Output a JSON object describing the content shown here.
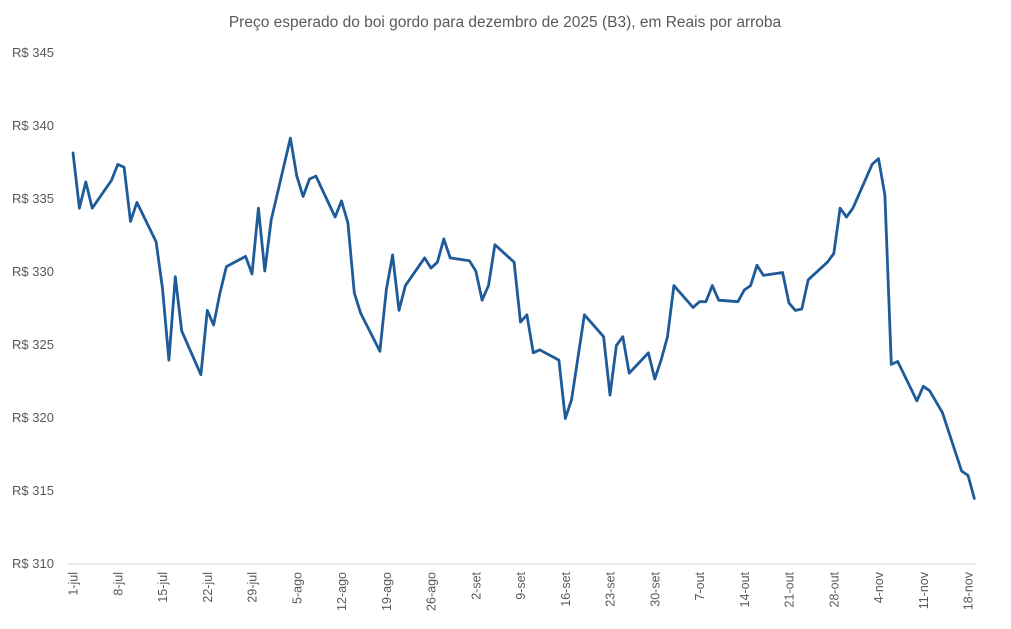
{
  "chart_data": {
    "type": "line",
    "title": "Preço esperado do boi gordo para dezembro de 2025 (B3), em Reais por arroba",
    "xlabel": "",
    "ylabel": "",
    "ylim": [
      310,
      345
    ],
    "y_ticks": [
      "R$ 310",
      "R$ 315",
      "R$ 320",
      "R$ 325",
      "R$ 330",
      "R$ 335",
      "R$ 340",
      "R$ 345"
    ],
    "y_tick_values": [
      310,
      315,
      320,
      325,
      330,
      335,
      340,
      345
    ],
    "x_ticks": [
      "1-jul",
      "8-jul",
      "15-jul",
      "22-jul",
      "29-jul",
      "5-ago",
      "12-ago",
      "19-ago",
      "26-ago",
      "2-set",
      "9-set",
      "16-set",
      "23-set",
      "30-set",
      "7-out",
      "14-out",
      "21-out",
      "28-out",
      "4-nov",
      "11-nov",
      "18-nov"
    ],
    "x_tick_dates": [
      "2025-07-01",
      "2025-07-08",
      "2025-07-15",
      "2025-07-22",
      "2025-07-29",
      "2025-08-05",
      "2025-08-12",
      "2025-08-19",
      "2025-08-26",
      "2025-09-02",
      "2025-09-09",
      "2025-09-16",
      "2025-09-23",
      "2025-09-30",
      "2025-10-07",
      "2025-10-14",
      "2025-10-21",
      "2025-10-28",
      "2025-11-04",
      "2025-11-11",
      "2025-11-18"
    ],
    "grid": false,
    "line_color": "#1f5b99",
    "series": [
      {
        "x": [
          "2025-07-01",
          "2025-07-02",
          "2025-07-03",
          "2025-07-04",
          "2025-07-07",
          "2025-07-08",
          "2025-07-09",
          "2025-07-10",
          "2025-07-11",
          "2025-07-14",
          "2025-07-15",
          "2025-07-16",
          "2025-07-17",
          "2025-07-18",
          "2025-07-21",
          "2025-07-22",
          "2025-07-23",
          "2025-07-24",
          "2025-07-25",
          "2025-07-28",
          "2025-07-29",
          "2025-07-30",
          "2025-07-31",
          "2025-08-01",
          "2025-08-04",
          "2025-08-05",
          "2025-08-06",
          "2025-08-07",
          "2025-08-08",
          "2025-08-11",
          "2025-08-12",
          "2025-08-13",
          "2025-08-14",
          "2025-08-15",
          "2025-08-18",
          "2025-08-19",
          "2025-08-20",
          "2025-08-21",
          "2025-08-22",
          "2025-08-25",
          "2025-08-26",
          "2025-08-27",
          "2025-08-28",
          "2025-08-29",
          "2025-09-01",
          "2025-09-02",
          "2025-09-03",
          "2025-09-04",
          "2025-09-05",
          "2025-09-08",
          "2025-09-09",
          "2025-09-10",
          "2025-09-11",
          "2025-09-12",
          "2025-09-15",
          "2025-09-16",
          "2025-09-17",
          "2025-09-19",
          "2025-09-22",
          "2025-09-23",
          "2025-09-24",
          "2025-09-25",
          "2025-09-26",
          "2025-09-29",
          "2025-09-30",
          "2025-10-01",
          "2025-10-02",
          "2025-10-03",
          "2025-10-06",
          "2025-10-07",
          "2025-10-08",
          "2025-10-09",
          "2025-10-10",
          "2025-10-13",
          "2025-10-14",
          "2025-10-15",
          "2025-10-16",
          "2025-10-17",
          "2025-10-20",
          "2025-10-21",
          "2025-10-22",
          "2025-10-23",
          "2025-10-24",
          "2025-10-27",
          "2025-10-28",
          "2025-10-29",
          "2025-10-30",
          "2025-10-31",
          "2025-11-03",
          "2025-11-04",
          "2025-11-05",
          "2025-11-06",
          "2025-11-07",
          "2025-11-10",
          "2025-11-11",
          "2025-11-12",
          "2025-11-14",
          "2025-11-17",
          "2025-11-18",
          "2025-11-19"
        ],
        "y": [
          338.1,
          334.3,
          336.1,
          334.3,
          336.2,
          337.3,
          337.1,
          333.4,
          334.7,
          332.0,
          328.8,
          323.9,
          329.6,
          325.9,
          322.9,
          327.3,
          326.3,
          328.5,
          330.3,
          331.0,
          329.8,
          334.3,
          330.0,
          333.5,
          339.1,
          336.5,
          335.1,
          336.3,
          336.5,
          333.7,
          334.8,
          333.3,
          328.5,
          327.1,
          324.5,
          328.7,
          331.1,
          327.3,
          329.0,
          330.9,
          330.2,
          330.6,
          332.2,
          330.9,
          330.7,
          330.0,
          328.0,
          329.0,
          331.8,
          330.6,
          326.5,
          327.0,
          324.4,
          324.6,
          323.9,
          319.9,
          321.2,
          327.0,
          325.5,
          321.5,
          324.9,
          325.5,
          323.0,
          324.4,
          322.6,
          323.9,
          325.5,
          329.0,
          327.5,
          327.9,
          327.9,
          329.0,
          328.0,
          327.9,
          328.7,
          329.0,
          330.4,
          329.7,
          329.9,
          327.8,
          327.3,
          327.4,
          329.4,
          330.6,
          331.2,
          334.3,
          333.7,
          334.3,
          337.3,
          337.7,
          335.2,
          323.6,
          323.8,
          321.1,
          322.1,
          321.8,
          320.3,
          316.3,
          316.0,
          314.4
        ]
      }
    ]
  }
}
